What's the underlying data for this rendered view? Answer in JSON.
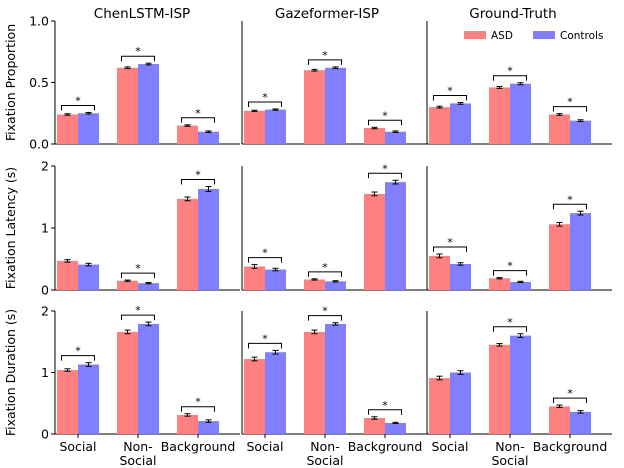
{
  "chart_data": {
    "type": "bar",
    "layout": "grid 3 rows x 3 columns, shared axes",
    "columns": [
      "ChenLSTM-ISP",
      "Gazeformer-ISP",
      "Ground-Truth"
    ],
    "categories": [
      "Social",
      "Non-\nSocial",
      "Background"
    ],
    "category_lines": [
      [
        "Social"
      ],
      [
        "Non-",
        "Social"
      ],
      [
        "Background"
      ]
    ],
    "series_names": [
      "ASD",
      "Controls"
    ],
    "colors": {
      "ASD": "#ff8080",
      "Controls": "#8080ff"
    },
    "legend_location": "upper-right of Ground-Truth top panel",
    "grid": false,
    "significance_marker": "*",
    "rows": [
      {
        "ylabel": "Fixation Proportion",
        "ylim": [
          0,
          1
        ],
        "yticks": [
          0,
          0.5,
          1
        ],
        "ytick_labels": [
          "0.0",
          "0.5",
          "1.0"
        ],
        "panels": [
          {
            "ASD": [
              0.24,
              0.62,
              0.15
            ],
            "ASD_err": [
              0.006,
              0.007,
              0.006
            ],
            "Controls": [
              0.25,
              0.65,
              0.1
            ],
            "Controls_err": [
              0.006,
              0.007,
              0.006
            ],
            "significant": [
              true,
              true,
              true
            ]
          },
          {
            "ASD": [
              0.27,
              0.6,
              0.13
            ],
            "ASD_err": [
              0.005,
              0.007,
              0.006
            ],
            "Controls": [
              0.28,
              0.62,
              0.1
            ],
            "Controls_err": [
              0.005,
              0.007,
              0.006
            ],
            "significant": [
              true,
              true,
              true
            ]
          },
          {
            "ASD": [
              0.3,
              0.46,
              0.24
            ],
            "ASD_err": [
              0.007,
              0.008,
              0.007
            ],
            "Controls": [
              0.33,
              0.49,
              0.19
            ],
            "Controls_err": [
              0.007,
              0.008,
              0.007
            ],
            "significant": [
              true,
              true,
              true
            ]
          }
        ]
      },
      {
        "ylabel": "Fixation Latency (s)",
        "ylim": [
          0,
          2
        ],
        "yticks": [
          0,
          1,
          2
        ],
        "ytick_labels": [
          "0",
          "1",
          "2"
        ],
        "panels": [
          {
            "ASD": [
              0.47,
              0.15,
              1.47
            ],
            "ASD_err": [
              0.02,
              0.01,
              0.03
            ],
            "Controls": [
              0.41,
              0.11,
              1.63
            ],
            "Controls_err": [
              0.02,
              0.01,
              0.04
            ],
            "significant": [
              false,
              true,
              true
            ]
          },
          {
            "ASD": [
              0.38,
              0.17,
              1.55
            ],
            "ASD_err": [
              0.03,
              0.01,
              0.03
            ],
            "Controls": [
              0.33,
              0.14,
              1.74
            ],
            "Controls_err": [
              0.02,
              0.01,
              0.03
            ],
            "significant": [
              true,
              true,
              true
            ]
          },
          {
            "ASD": [
              0.55,
              0.19,
              1.06
            ],
            "ASD_err": [
              0.03,
              0.01,
              0.03
            ],
            "Controls": [
              0.42,
              0.13,
              1.24
            ],
            "Controls_err": [
              0.02,
              0.01,
              0.03
            ],
            "significant": [
              true,
              true,
              true
            ]
          }
        ]
      },
      {
        "ylabel": "Fixation Duration (s)",
        "ylim": [
          0,
          2
        ],
        "yticks": [
          0,
          1,
          2
        ],
        "ytick_labels": [
          "0",
          "1",
          "2"
        ],
        "panels": [
          {
            "ASD": [
              1.04,
              1.66,
              0.31
            ],
            "ASD_err": [
              0.02,
              0.03,
              0.02
            ],
            "Controls": [
              1.13,
              1.79,
              0.21
            ],
            "Controls_err": [
              0.03,
              0.03,
              0.02
            ],
            "significant": [
              true,
              true,
              true
            ]
          },
          {
            "ASD": [
              1.22,
              1.66,
              0.26
            ],
            "ASD_err": [
              0.03,
              0.03,
              0.02
            ],
            "Controls": [
              1.33,
              1.79,
              0.18
            ],
            "Controls_err": [
              0.03,
              0.02,
              0.01
            ],
            "significant": [
              true,
              true,
              true
            ]
          },
          {
            "ASD": [
              0.91,
              1.45,
              0.45
            ],
            "ASD_err": [
              0.03,
              0.02,
              0.02
            ],
            "Controls": [
              1.0,
              1.6,
              0.36
            ],
            "Controls_err": [
              0.03,
              0.03,
              0.02
            ],
            "significant": [
              false,
              true,
              true
            ]
          }
        ]
      }
    ]
  }
}
